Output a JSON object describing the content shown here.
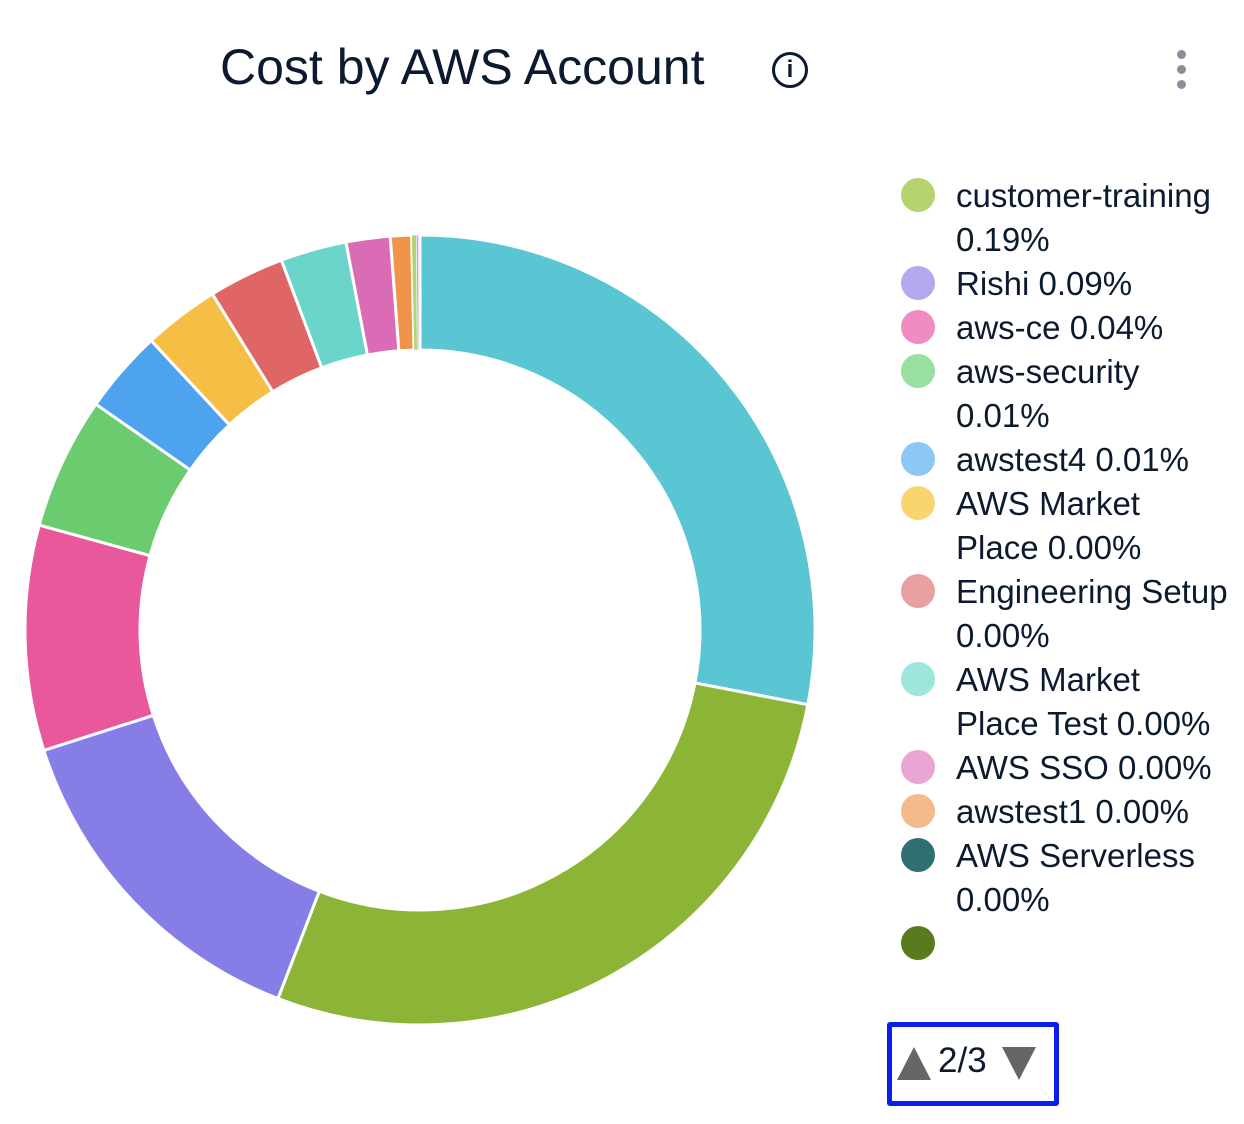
{
  "header": {
    "title": "Cost by AWS Account",
    "info_icon": "info-circle-icon",
    "menu_icon": "kebab-menu-icon"
  },
  "chart_data": {
    "type": "pie",
    "donut": true,
    "title": "Cost by AWS Account",
    "legend_position": "right",
    "slices": [
      {
        "name": "",
        "value": 28.0,
        "color": "#5BC6D3"
      },
      {
        "name": "",
        "value": 27.8,
        "color": "#8CB436"
      },
      {
        "name": "",
        "value": 14.2,
        "color": "#877DE6"
      },
      {
        "name": "",
        "value": 9.2,
        "color": "#E9589A"
      },
      {
        "name": "",
        "value": 5.4,
        "color": "#6ACC6F"
      },
      {
        "name": "",
        "value": 3.4,
        "color": "#4EA3EE"
      },
      {
        "name": "",
        "value": 3.1,
        "color": "#F6BE45"
      },
      {
        "name": "",
        "value": 3.1,
        "color": "#E06666"
      },
      {
        "name": "",
        "value": 2.7,
        "color": "#6BD5CC"
      },
      {
        "name": "",
        "value": 1.8,
        "color": "#DA6BB5"
      },
      {
        "name": "",
        "value": 0.86,
        "color": "#F0944A"
      },
      {
        "name": "customer-training",
        "value": 0.19,
        "color": "#B5D36E"
      },
      {
        "name": "Rishi",
        "value": 0.09,
        "color": "#B3A9F0"
      },
      {
        "name": "aws-ce",
        "value": 0.04,
        "color": "#F08CC0"
      },
      {
        "name": "aws-security",
        "value": 0.01,
        "color": "#98E0A0"
      },
      {
        "name": "awstest4",
        "value": 0.01,
        "color": "#8CC8F5"
      }
    ],
    "legend": [
      {
        "label": "customer-training 0.19%",
        "color": "#B5D36E"
      },
      {
        "label": "Rishi 0.09%",
        "color": "#B3A9F0"
      },
      {
        "label": "aws-ce 0.04%",
        "color": "#F08CC0"
      },
      {
        "label": "aws-security 0.01%",
        "color": "#98E0A0"
      },
      {
        "label": "awstest4 0.01%",
        "color": "#8CC8F5"
      },
      {
        "label": "AWS Market Place 0.00%",
        "color": "#F9D570"
      },
      {
        "label": "Engineering Setup 0.00%",
        "color": "#E8A0A0"
      },
      {
        "label": "AWS Market Place Test 0.00%",
        "color": "#9DE6DD"
      },
      {
        "label": "AWS SSO 0.00%",
        "color": "#E9A6D3"
      },
      {
        "label": "awstest1 0.00%",
        "color": "#F5BA8A"
      },
      {
        "label": "AWS Serverless 0.00%",
        "color": "#2F6F73"
      },
      {
        "label": "",
        "color": "#5A7A1E"
      }
    ]
  },
  "pager": {
    "text": "2/3",
    "up_icon": "triangle-up-icon",
    "down_icon": "triangle-down-icon",
    "highlight_color": "#0A1EF0"
  }
}
